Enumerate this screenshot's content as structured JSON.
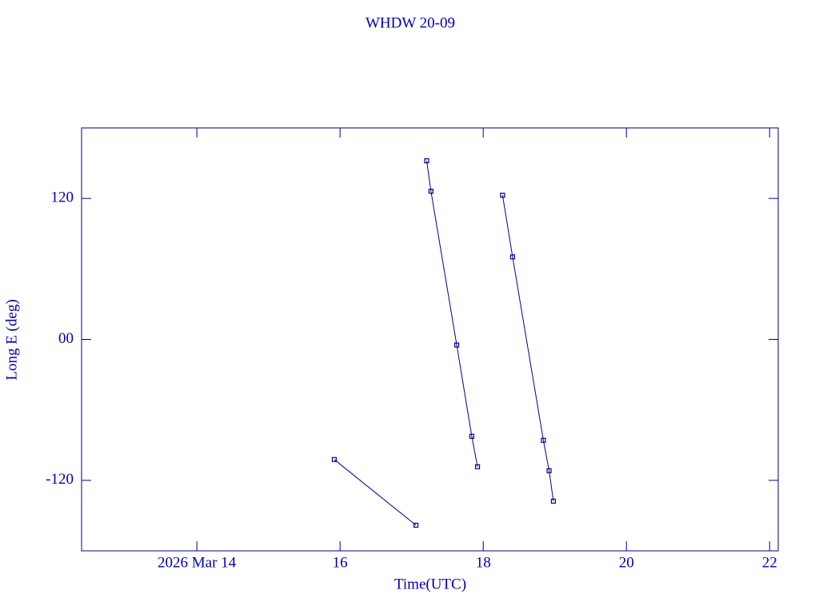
{
  "chart_data": {
    "type": "line",
    "title": "WHDW 20-09",
    "x_label": "Time(UTC)",
    "y_label": "Long E (deg)",
    "xlim": [
      12.39,
      22.12
    ],
    "ylim": [
      -180,
      180
    ],
    "xticks": [
      {
        "value": 14,
        "label": "2026 Mar 14"
      },
      16,
      18,
      20,
      22
    ],
    "yticks": [
      {
        "value": 120,
        "label": "120"
      },
      {
        "value": 0,
        "label": "00"
      },
      {
        "value": -120,
        "label": "-120"
      }
    ],
    "series": [
      {
        "name": "WHDW 20-09",
        "color": "#00008b",
        "x": [
          15.92,
          17.06,
          null,
          17.21,
          17.27,
          17.63,
          17.84,
          17.92,
          null,
          18.27,
          18.41,
          18.84,
          18.92,
          18.98
        ],
        "values": [
          -102.3,
          -158.2,
          null,
          152.0,
          126.1,
          -4.8,
          -82.5,
          -108.4,
          null,
          122.7,
          70.2,
          -85.9,
          -111.8,
          -137.7
        ]
      }
    ]
  }
}
